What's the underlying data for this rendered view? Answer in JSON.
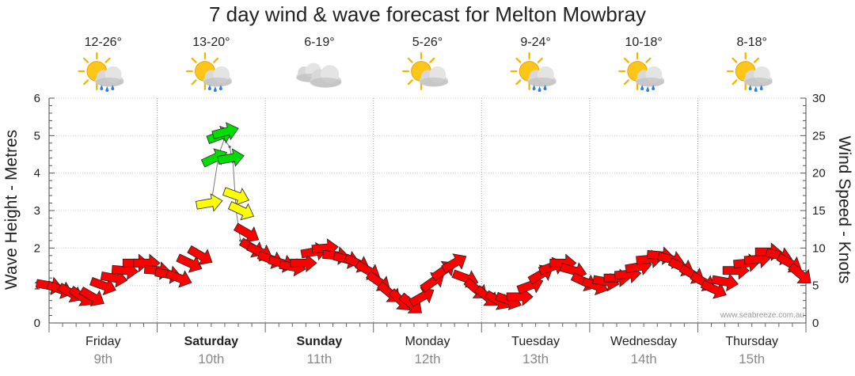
{
  "chart_data": {
    "type": "line",
    "title": "7 day wind & wave forecast for Melton Mowbray",
    "ylabel_left": "Wave Height - Metres",
    "ylabel_right": "Wind Speed - Knots",
    "ylim_left": [
      0,
      6
    ],
    "ylim_right": [
      0,
      30
    ],
    "yticks_left": [
      "0",
      "1",
      "2",
      "3",
      "4",
      "5",
      "6"
    ],
    "yticks_right": [
      "0",
      "5",
      "10",
      "15",
      "20",
      "25",
      "30"
    ],
    "credit": "www.seabreeze.com.au",
    "days": [
      {
        "day": "Friday",
        "date": "9th",
        "temp": "12-26°",
        "icon": "sun-cloud-rain-icon",
        "bold": false
      },
      {
        "day": "Saturday",
        "date": "10th",
        "temp": "13-20°",
        "icon": "sun-cloud-rain-icon",
        "bold": true
      },
      {
        "day": "Sunday",
        "date": "11th",
        "temp": "6-19°",
        "icon": "cloud-icon",
        "bold": true
      },
      {
        "day": "Monday",
        "date": "12th",
        "temp": "5-26°",
        "icon": "sun-cloud-icon",
        "bold": false
      },
      {
        "day": "Tuesday",
        "date": "13th",
        "temp": "9-24°",
        "icon": "sun-cloud-rain-icon",
        "bold": false
      },
      {
        "day": "Wednesday",
        "date": "14th",
        "temp": "10-18°",
        "icon": "sun-cloud-rain-icon",
        "bold": false
      },
      {
        "day": "Thursday",
        "date": "15th",
        "temp": "8-18°",
        "icon": "sun-cloud-rain-icon",
        "bold": false
      }
    ],
    "x_range_days": [
      0,
      7
    ],
    "wind_series": {
      "name": "Wind Speed",
      "points": [
        [
          0.0,
          5.0,
          100
        ],
        [
          0.1,
          4.5,
          110
        ],
        [
          0.2,
          4.0,
          120
        ],
        [
          0.3,
          3.5,
          125
        ],
        [
          0.4,
          3.5,
          120
        ],
        [
          0.5,
          5.0,
          110
        ],
        [
          0.6,
          6.0,
          100
        ],
        [
          0.7,
          7.0,
          95
        ],
        [
          0.8,
          8.0,
          90
        ],
        [
          0.9,
          8.0,
          90
        ],
        [
          1.0,
          7.0,
          95
        ],
        [
          1.1,
          6.5,
          100
        ],
        [
          1.2,
          6.0,
          110
        ],
        [
          1.3,
          8.0,
          115
        ],
        [
          1.4,
          9.0,
          120
        ],
        [
          1.48,
          16.0,
          80
        ],
        [
          1.53,
          22.0,
          65
        ],
        [
          1.58,
          25.0,
          70
        ],
        [
          1.63,
          25.5,
          75
        ],
        [
          1.68,
          22.0,
          80
        ],
        [
          1.73,
          17.0,
          110
        ],
        [
          1.78,
          15.0,
          115
        ],
        [
          1.83,
          12.0,
          120
        ],
        [
          1.88,
          10.0,
          120
        ],
        [
          1.95,
          9.5,
          115
        ],
        [
          2.05,
          8.5,
          110
        ],
        [
          2.15,
          8.0,
          105
        ],
        [
          2.25,
          7.5,
          100
        ],
        [
          2.35,
          8.0,
          90
        ],
        [
          2.45,
          9.5,
          80
        ],
        [
          2.55,
          10.0,
          85
        ],
        [
          2.65,
          9.0,
          95
        ],
        [
          2.75,
          8.5,
          105
        ],
        [
          2.85,
          8.0,
          115
        ],
        [
          2.95,
          7.0,
          120
        ],
        [
          3.05,
          5.5,
          125
        ],
        [
          3.15,
          4.0,
          130
        ],
        [
          3.25,
          3.0,
          135
        ],
        [
          3.35,
          2.5,
          130
        ],
        [
          3.45,
          3.5,
          60
        ],
        [
          3.55,
          5.5,
          55
        ],
        [
          3.65,
          7.0,
          55
        ],
        [
          3.75,
          8.0,
          60
        ],
        [
          3.85,
          6.0,
          110
        ],
        [
          3.95,
          4.5,
          130
        ],
        [
          4.05,
          3.5,
          130
        ],
        [
          4.15,
          3.0,
          120
        ],
        [
          4.25,
          3.0,
          110
        ],
        [
          4.35,
          3.5,
          90
        ],
        [
          4.45,
          5.0,
          70
        ],
        [
          4.55,
          6.5,
          60
        ],
        [
          4.65,
          7.5,
          70
        ],
        [
          4.75,
          8.0,
          90
        ],
        [
          4.85,
          7.0,
          105
        ],
        [
          4.95,
          5.5,
          115
        ],
        [
          5.05,
          5.0,
          110
        ],
        [
          5.15,
          5.5,
          100
        ],
        [
          5.25,
          6.0,
          90
        ],
        [
          5.35,
          6.5,
          85
        ],
        [
          5.45,
          7.5,
          80
        ],
        [
          5.55,
          8.5,
          85
        ],
        [
          5.65,
          9.0,
          95
        ],
        [
          5.75,
          8.5,
          105
        ],
        [
          5.85,
          7.5,
          115
        ],
        [
          5.95,
          6.5,
          120
        ],
        [
          6.05,
          5.5,
          120
        ],
        [
          6.15,
          4.5,
          115
        ],
        [
          6.25,
          5.5,
          100
        ],
        [
          6.35,
          7.0,
          90
        ],
        [
          6.45,
          8.0,
          85
        ],
        [
          6.55,
          8.5,
          85
        ],
        [
          6.65,
          9.5,
          90
        ],
        [
          6.75,
          9.0,
          105
        ],
        [
          6.85,
          8.0,
          120
        ],
        [
          6.95,
          6.5,
          130
        ]
      ]
    },
    "wave_series": {
      "name": "Wave Height",
      "points": [
        [
          1.5,
          3.2
        ],
        [
          1.57,
          4.5
        ],
        [
          1.62,
          4.9
        ],
        [
          1.67,
          4.7
        ],
        [
          1.7,
          4.3
        ],
        [
          1.73,
          3.0
        ],
        [
          1.77,
          2.2
        ]
      ]
    },
    "colors": {
      "strong": "#00dd00",
      "moderate": "#ffff00",
      "light": "#ff0000",
      "grid": "#999999"
    }
  }
}
